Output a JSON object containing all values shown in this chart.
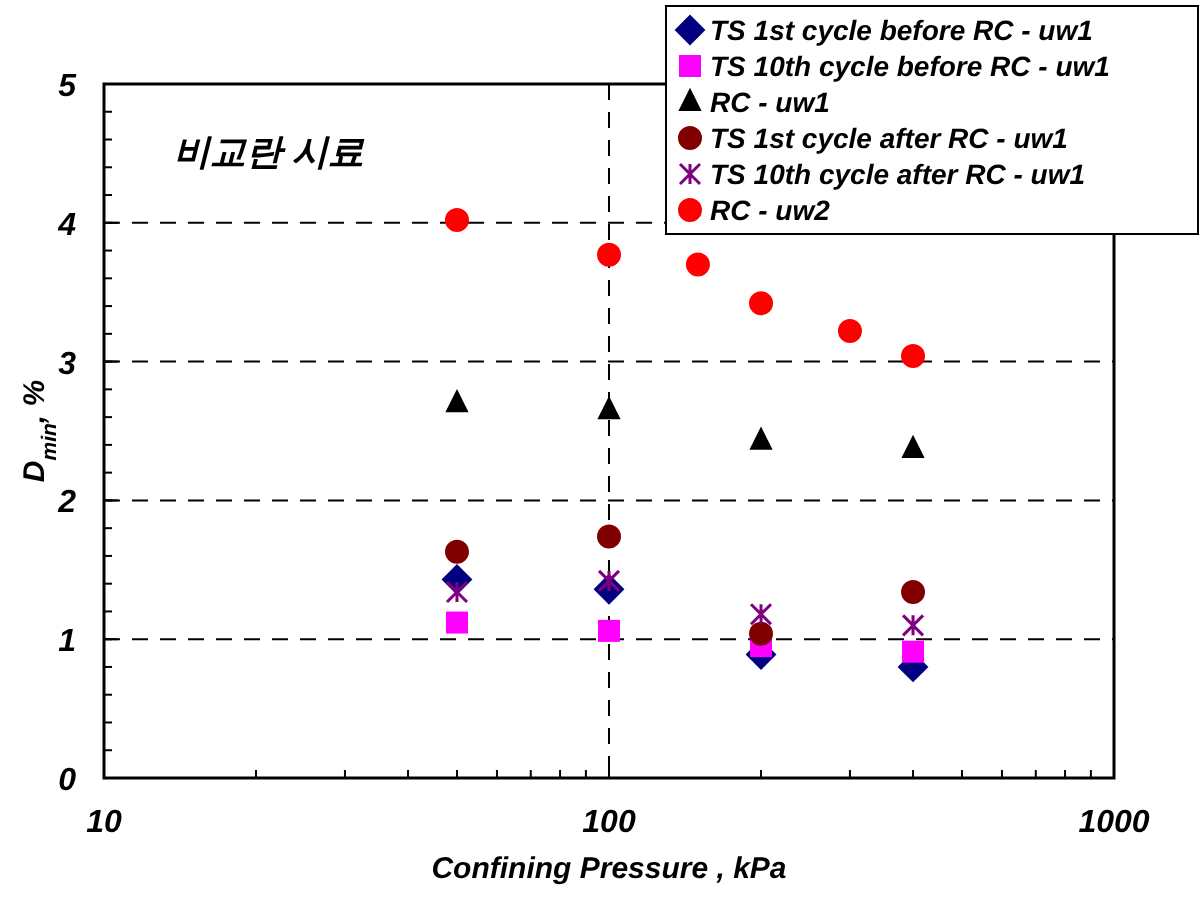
{
  "chart_data": {
    "type": "scatter",
    "xlabel": "Confining Pressure  , kPa",
    "ylabel": "D$_{min}$, %",
    "x": [
      50,
      100,
      200,
      400
    ],
    "series": [
      {
        "name": "TS 1st cycle before RC - uw1",
        "color": "#000080",
        "marker": "diamond",
        "values": [
          1.43,
          1.36,
          0.89,
          0.8
        ]
      },
      {
        "name": "TS 10th cycle before RC - uw1",
        "color": "#ff00ff",
        "marker": "square",
        "values": [
          1.12,
          1.06,
          0.95,
          0.91
        ]
      },
      {
        "name": "RC - uw1",
        "color": "#000000",
        "marker": "triangle",
        "values": [
          2.7,
          2.65,
          2.43,
          2.37
        ]
      },
      {
        "name": "TS 1st cycle after RC - uw1",
        "color": "#800000",
        "marker": "circle",
        "values": [
          1.63,
          1.74,
          1.04,
          1.34
        ]
      },
      {
        "name": "TS 10th cycle after RC - uw1",
        "color": "#800080",
        "marker": "cross",
        "values": [
          1.34,
          1.42,
          1.18,
          1.1
        ]
      },
      {
        "name": "RC - uw2",
        "color": "#ff0000",
        "marker": "circle",
        "x": [
          50,
          100,
          150,
          200,
          300,
          400
        ],
        "values": [
          4.02,
          3.77,
          3.7,
          3.42,
          3.22,
          3.04
        ]
      }
    ],
    "log": "x",
    "xlim": [
      10,
      1000
    ],
    "xticks": [
      10,
      100,
      1000
    ],
    "ylim": [
      0,
      5
    ],
    "yticks": [
      0,
      1,
      2,
      3,
      4,
      5
    ],
    "grid": true,
    "legend": "top right",
    "annotations": [
      "비교란 시료"
    ]
  }
}
